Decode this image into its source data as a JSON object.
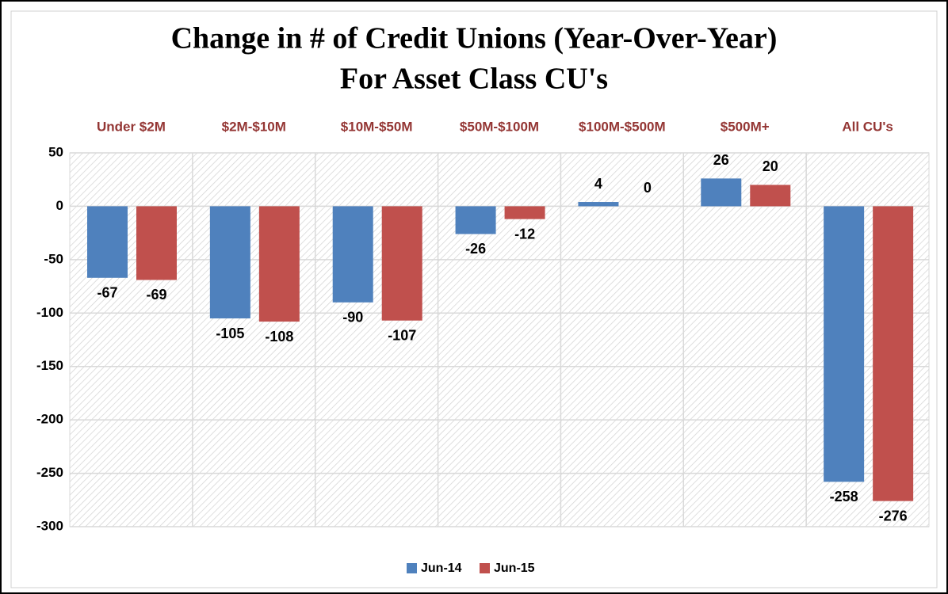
{
  "chart_data": {
    "type": "bar",
    "title": [
      "Change in # of Credit Unions (Year-Over-Year)",
      "For Asset Class CU's"
    ],
    "categories": [
      "Under $2M",
      "$2M-$10M",
      "$10M-$50M",
      "$50M-$100M",
      "$100M-$500M",
      "$500M+",
      "All CU's"
    ],
    "series": [
      {
        "name": "Jun-14",
        "color": "#4f81bd",
        "values": [
          -67,
          -105,
          -90,
          -26,
          4,
          26,
          -258
        ]
      },
      {
        "name": "Jun-15",
        "color": "#c0504d",
        "values": [
          -69,
          -108,
          -107,
          -12,
          0,
          20,
          -276
        ]
      }
    ],
    "ylim": [
      -300,
      50
    ],
    "yticks": [
      50,
      0,
      -50,
      -100,
      -150,
      -200,
      -250,
      -300
    ],
    "grid": true,
    "legend": "bottom"
  }
}
